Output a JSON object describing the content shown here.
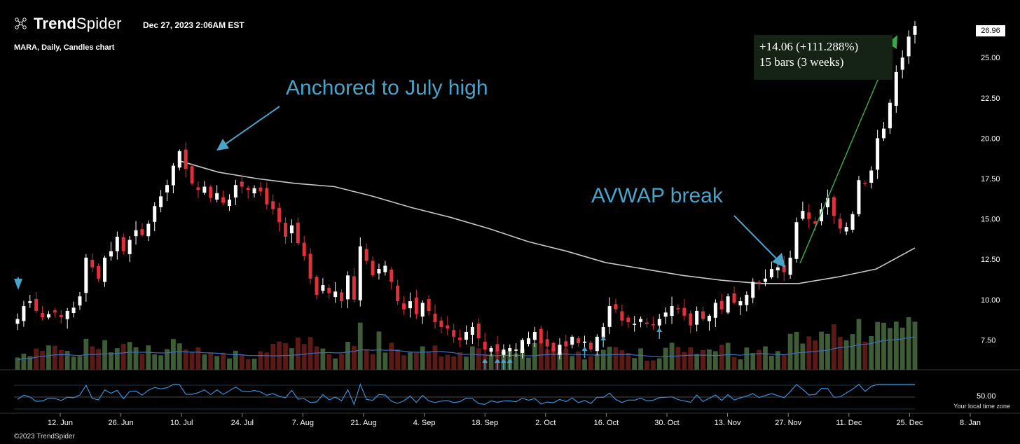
{
  "header": {
    "brand_bold": "Trend",
    "brand_regular": "Spider",
    "datetime": "Dec 27, 2023 2:06AM EST",
    "symbol_line": "MARA, Daily, Candles chart"
  },
  "annotations": {
    "anchor_note": "Anchored to July high",
    "break_note": "AVWAP break",
    "measure_line1": "+14.06 (+111.288%)",
    "measure_line2": "15 bars (3 weeks)"
  },
  "price_axis": {
    "ticks": [
      "25.00",
      "22.50",
      "20.00",
      "17.50",
      "15.00",
      "12.50",
      "10.00",
      "7.50"
    ],
    "last_price": "26.96",
    "rsi_label": "50.00"
  },
  "time_axis": {
    "ticks": [
      "12. Jun",
      "26. Jun",
      "10. Jul",
      "24. Jul",
      "7. Aug",
      "21. Aug",
      "4. Sep",
      "18. Sep",
      "2. Oct",
      "16. Oct",
      "30. Oct",
      "13. Nov",
      "27. Nov",
      "11. Dec",
      "25. Dec",
      "8. Jan"
    ]
  },
  "footer": {
    "copyright": "©2023 TrendSpider",
    "timezone": "Your local time zone"
  },
  "colors": {
    "up": "#ffffff",
    "down": "#e0303a",
    "vol_up": "#3e5c35",
    "vol_down": "#5b1a16",
    "avwap": "#c8c8c8",
    "annotation": "#4aa3c8",
    "measure": "#3aa84a"
  },
  "chart_data": {
    "type": "candlestick",
    "ylim": [
      6.0,
      27.7
    ],
    "xlim": [
      "2023-05-31",
      "2024-01-11"
    ],
    "closes": [
      8.8,
      9.6,
      9.9,
      9.3,
      8.9,
      9.1,
      9.2,
      8.9,
      9.3,
      9.5,
      10.2,
      12.6,
      12.0,
      11.3,
      12.6,
      13.0,
      13.9,
      13.0,
      13.7,
      14.3,
      14.0,
      14.7,
      15.8,
      16.4,
      17.1,
      18.3,
      19.2,
      18.1,
      17.2,
      16.8,
      17.0,
      16.3,
      16.6,
      16.0,
      16.2,
      17.1,
      17.0,
      16.8,
      16.9,
      16.7,
      15.9,
      15.6,
      14.8,
      13.9,
      14.6,
      13.5,
      12.7,
      11.3,
      10.3,
      10.9,
      10.4,
      10.5,
      9.9,
      11.5,
      10.0,
      13.3,
      12.4,
      11.5,
      11.9,
      12.1,
      11.1,
      9.9,
      9.4,
      9.9,
      9.1,
      9.8,
      9.3,
      8.6,
      8.3,
      8.2,
      7.7,
      7.5,
      8.0,
      8.3,
      7.6,
      6.9,
      7.0,
      6.8,
      6.9,
      7.0,
      6.9,
      7.5,
      7.6,
      8.0,
      7.3,
      7.1,
      6.8,
      7.2,
      7.1,
      7.7,
      7.3,
      7.4,
      6.9,
      7.7,
      8.3,
      9.6,
      9.4,
      8.7,
      8.6,
      8.5,
      8.8,
      8.5,
      8.4,
      8.8,
      9.2,
      9.6,
      9.4,
      9.0,
      8.4,
      9.3,
      8.8,
      9.0,
      9.8,
      9.4,
      10.2,
      9.8,
      9.9,
      10.3,
      11.1,
      11.0,
      11.3,
      11.9,
      12.0,
      11.7,
      12.6,
      14.8,
      15.5,
      15.0,
      14.7,
      15.6,
      16.3,
      15.2,
      14.4,
      14.5,
      15.3,
      17.4,
      17.2,
      18.0,
      20.0,
      20.6,
      22.2,
      24.1,
      25.0,
      26.3,
      26.96
    ],
    "volume_scale": "relative",
    "avwap_anchor": "July high",
    "avwap": [
      18.6,
      17.9,
      17.5,
      17.2,
      17.0,
      16.4,
      15.7,
      15.1,
      14.4,
      13.6,
      13.0,
      12.3,
      11.9,
      11.5,
      11.2,
      11.0,
      11.0,
      11.4,
      11.9,
      13.2
    ],
    "measure": {
      "change": 14.06,
      "change_pct": 111.288,
      "bars": 15
    }
  }
}
